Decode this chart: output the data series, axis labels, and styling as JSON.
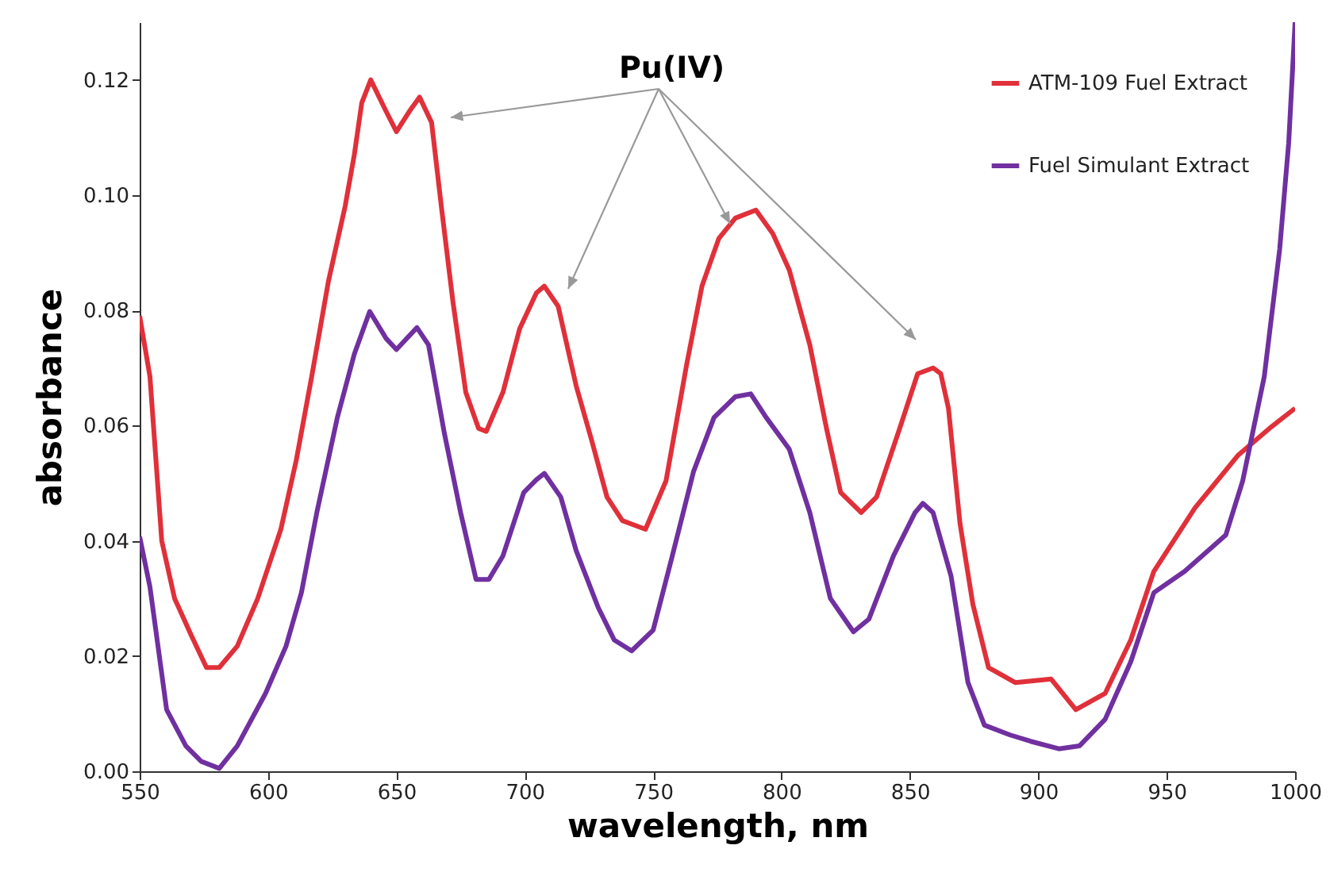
{
  "chart_data": {
    "type": "line",
    "xlabel": "wavelength, nm",
    "ylabel": "absorbance",
    "annotations": [
      {
        "text": "Pu(IV)",
        "x": 780,
        "y": 0.095
      }
    ],
    "xlim": [
      550,
      1000
    ],
    "xticks": [
      550,
      600,
      650,
      700,
      750,
      800,
      850,
      900,
      950,
      1000
    ],
    "ylim": [
      0,
      0.13
    ],
    "yticks": [
      {
        "value": 0,
        "label": "0.00"
      },
      {
        "value": 0.02,
        "label": "0.02"
      },
      {
        "value": 0.04,
        "label": "0.04"
      },
      {
        "value": 0.06,
        "label": "0.06"
      },
      {
        "value": 0.08,
        "label": "0.08"
      },
      {
        "value": 0.1,
        "label": "0.10"
      },
      {
        "value": 0.12,
        "label": "0.12"
      }
    ],
    "grid": false,
    "legend": "top right",
    "marker": "none",
    "line_style": "solid",
    "series": [
      {
        "name": "ATM-109 Fuel Extract",
        "color": "#e0303a",
        "x": [
          550,
          554,
          558.6,
          563.6,
          570,
          576,
          581,
          588,
          596,
          605,
          611,
          617,
          623.5,
          630,
          633.6,
          636.5,
          640,
          646,
          650,
          655,
          659,
          663.7,
          667.5,
          672,
          677,
          682,
          685,
          691.5,
          698,
          704.5,
          707.6,
          713,
          720,
          726,
          732,
          738,
          747,
          755,
          763,
          769,
          775.6,
          782,
          790,
          796.6,
          803,
          811,
          817.5,
          823,
          831,
          837,
          846,
          853,
          859,
          862,
          865,
          869.5,
          874.5,
          880.6,
          891,
          905,
          914.6,
          926,
          936,
          945,
          961,
          977.7,
          990,
          1000
        ],
        "values": [
          0.079,
          0.0685,
          0.04,
          0.03,
          0.0237,
          0.018,
          0.018,
          0.0217,
          0.03,
          0.042,
          0.054,
          0.0685,
          0.085,
          0.098,
          0.107,
          0.116,
          0.12,
          0.1145,
          0.111,
          0.1145,
          0.117,
          0.1126,
          0.098,
          0.0815,
          0.0658,
          0.0595,
          0.059,
          0.0658,
          0.0768,
          0.083,
          0.0842,
          0.0807,
          0.0669,
          0.0575,
          0.0476,
          0.0435,
          0.042,
          0.0504,
          0.0705,
          0.0842,
          0.0925,
          0.096,
          0.0974,
          0.0933,
          0.087,
          0.074,
          0.0595,
          0.0484,
          0.0449,
          0.0476,
          0.0595,
          0.069,
          0.07,
          0.069,
          0.063,
          0.043,
          0.029,
          0.018,
          0.0154,
          0.016,
          0.0107,
          0.0135,
          0.0228,
          0.0347,
          0.0457,
          0.0548,
          0.0595,
          0.063
        ]
      },
      {
        "name": "Fuel Simulant Extract",
        "color": "#7030a0",
        "x": [
          550,
          554,
          560.5,
          568,
          574,
          581,
          588,
          599,
          607,
          613,
          619,
          627,
          633.6,
          639.6,
          646,
          650,
          658,
          662.5,
          668.7,
          675,
          681,
          686,
          691.5,
          699.6,
          704.5,
          707.6,
          714,
          720,
          728.6,
          734.8,
          741.6,
          750,
          757,
          765.7,
          773.7,
          782,
          788,
          794,
          803,
          811,
          819,
          828,
          834,
          843.6,
          852,
          855,
          859,
          866,
          872.6,
          879,
          889,
          897,
          908,
          916,
          926,
          936,
          945,
          957,
          973,
          979.6,
          988,
          994,
          997.5,
          1000
        ],
        "values": [
          0.0407,
          0.032,
          0.0107,
          0.0044,
          0.0017,
          0.0005,
          0.0044,
          0.0135,
          0.0217,
          0.031,
          0.0449,
          0.0614,
          0.0724,
          0.0798,
          0.0751,
          0.0732,
          0.077,
          0.074,
          0.0586,
          0.0449,
          0.0333,
          0.0333,
          0.0374,
          0.0484,
          0.0506,
          0.0517,
          0.0476,
          0.0383,
          0.0284,
          0.0228,
          0.0209,
          0.0245,
          0.0366,
          0.052,
          0.0614,
          0.065,
          0.0655,
          0.0614,
          0.0559,
          0.0449,
          0.03,
          0.0242,
          0.0264,
          0.0374,
          0.0449,
          0.0465,
          0.0449,
          0.0339,
          0.0154,
          0.008,
          0.0063,
          0.0052,
          0.0039,
          0.0044,
          0.009,
          0.019,
          0.031,
          0.0347,
          0.041,
          0.0504,
          0.0685,
          0.0906,
          0.109,
          0.13
        ]
      }
    ]
  }
}
